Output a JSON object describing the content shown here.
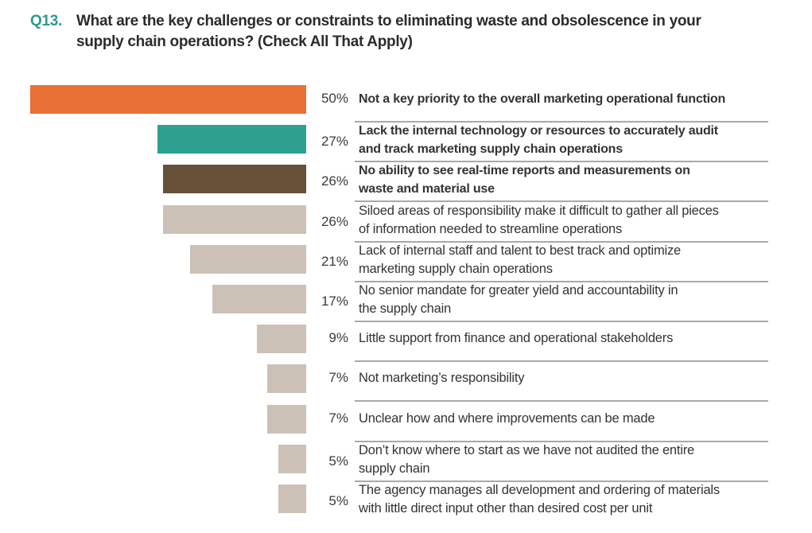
{
  "question": {
    "number": "Q13.",
    "text": "What are the key challenges or constraints to eliminating waste and obsolescence in your supply chain operations? (Check All That Apply)"
  },
  "colors": {
    "accent_teal": "#2e9a8c",
    "bar_orange": "#e87035",
    "bar_teal": "#2ea08f",
    "bar_brown": "#675038",
    "bar_gray": "#ccc1b7"
  },
  "chart_data": {
    "type": "bar",
    "orientation": "horizontal",
    "title": "Q13. What are the key challenges or constraints to eliminating waste and obsolescence in your supply chain operations? (Check All That Apply)",
    "xlabel": "",
    "ylabel": "",
    "xlim": [
      0,
      50
    ],
    "grid": false,
    "legend": "none",
    "unit": "%",
    "categories": [
      "Not a key priority to the overall marketing operational function",
      "Lack the internal technology or resources to accurately audit and track marketing supply chain operations",
      "No ability to see real-time reports and measurements on waste and material use",
      "Siloed areas of responsibility make it difficult to gather all pieces of information needed to streamline operations",
      "Lack of internal staff and talent to best track and optimize marketing supply chain operations",
      "No senior mandate for greater yield and accountability in the supply chain",
      "Little support from finance and operational stakeholders",
      "Not marketing’s responsibility",
      "Unclear how and where improvements can be made",
      "Don’t know where to start as we have not audited the entire supply chain",
      "The agency manages all development and ordering of materials with little direct input other than desired cost per unit"
    ],
    "values": [
      50,
      27,
      26,
      26,
      21,
      17,
      9,
      7,
      7,
      5,
      5
    ],
    "value_labels": [
      "50%",
      "27%",
      "26%",
      "26%",
      "21%",
      "17%",
      "9%",
      "7%",
      "7%",
      "5%",
      "5%"
    ],
    "label_lines": [
      [
        "Not a key priority to the overall marketing operational function"
      ],
      [
        "Lack the internal technology or resources to accurately audit",
        "and track marketing supply chain operations"
      ],
      [
        "No ability to see real-time reports and measurements on",
        "waste and material use"
      ],
      [
        "Siloed areas of responsibility make it difficult to gather all pieces",
        "of information needed to streamline operations"
      ],
      [
        "Lack of internal staff and talent to best track and optimize",
        "marketing supply chain operations"
      ],
      [
        "No senior mandate for greater yield and accountability in",
        "the supply chain"
      ],
      [
        "Little support from finance and operational stakeholders"
      ],
      [
        "Not marketing’s responsibility"
      ],
      [
        "Unclear how and where improvements can be made"
      ],
      [
        "Don’t know where to start as we have not audited the entire",
        "supply chain"
      ],
      [
        "The agency manages all development and ordering of materials",
        "with little direct input other than desired cost per unit"
      ]
    ],
    "bar_colors": [
      "#e87035",
      "#2ea08f",
      "#675038",
      "#ccc1b7",
      "#ccc1b7",
      "#ccc1b7",
      "#ccc1b7",
      "#ccc1b7",
      "#ccc1b7",
      "#ccc1b7",
      "#ccc1b7"
    ],
    "bold_labels": [
      true,
      true,
      true,
      false,
      false,
      false,
      false,
      false,
      false,
      false,
      false
    ]
  }
}
